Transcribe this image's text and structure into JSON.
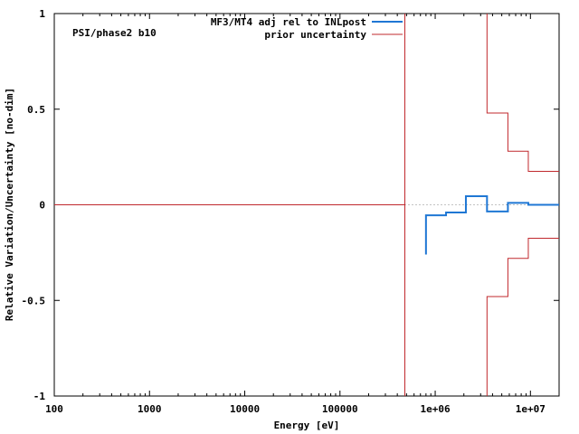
{
  "chart_data": {
    "type": "line",
    "annotation": "PSI/phase2 b10",
    "xlabel": "Energy [eV]",
    "ylabel": "Relative Variation/Uncertainty [no-dim]",
    "xscale": "log",
    "xlim": [
      100,
      20000000
    ],
    "ylim": [
      -1,
      1
    ],
    "x_ticks": [
      {
        "value": 100,
        "label": "100"
      },
      {
        "value": 1000,
        "label": "1000"
      },
      {
        "value": 10000,
        "label": "10000"
      },
      {
        "value": 100000,
        "label": "100000"
      },
      {
        "value": 1000000,
        "label": "1e+06"
      },
      {
        "value": 10000000,
        "label": "1e+07"
      }
    ],
    "y_ticks": [
      {
        "value": 1,
        "label": "1"
      },
      {
        "value": 0.5,
        "label": "0.5"
      },
      {
        "value": 0,
        "label": "0"
      },
      {
        "value": -0.5,
        "label": "-0.5"
      },
      {
        "value": -1,
        "label": "-1"
      }
    ],
    "grid": false,
    "legend_position": "top-right",
    "series": [
      {
        "name": "MF3/MT4 adj rel to INLpost",
        "color": "#1f77d4",
        "style": "step",
        "points": [
          [
            800000,
            -0.26
          ],
          [
            800000,
            -0.055
          ],
          [
            1300000,
            -0.055
          ],
          [
            1300000,
            -0.04
          ],
          [
            2100000,
            -0.04
          ],
          [
            2100000,
            0.045
          ],
          [
            3500000,
            0.045
          ],
          [
            3500000,
            -0.035
          ],
          [
            5800000,
            -0.035
          ],
          [
            5800000,
            0.01
          ],
          [
            9500000,
            0.01
          ],
          [
            9500000,
            0.0
          ],
          [
            20000000,
            0.0
          ]
        ]
      },
      {
        "name": "prior uncertainty",
        "color": "#c0282d",
        "style": "step",
        "segments": [
          [
            [
              100,
              0
            ],
            [
              480000,
              0
            ],
            [
              480000,
              1
            ]
          ],
          [
            [
              480000,
              0
            ],
            [
              480000,
              -1
            ]
          ],
          [
            [
              3500000,
              1
            ],
            [
              3500000,
              0.48
            ],
            [
              5800000,
              0.48
            ],
            [
              5800000,
              0.28
            ],
            [
              9500000,
              0.28
            ],
            [
              9500000,
              0.175
            ],
            [
              20000000,
              0.175
            ]
          ],
          [
            [
              3500000,
              -1
            ],
            [
              3500000,
              -0.48
            ],
            [
              5800000,
              -0.48
            ],
            [
              5800000,
              -0.28
            ],
            [
              9500000,
              -0.28
            ],
            [
              9500000,
              -0.175
            ],
            [
              20000000,
              -0.175
            ]
          ]
        ]
      }
    ],
    "zero_line": {
      "style": "dotted",
      "color": "#888888",
      "from_x": 480000
    }
  }
}
